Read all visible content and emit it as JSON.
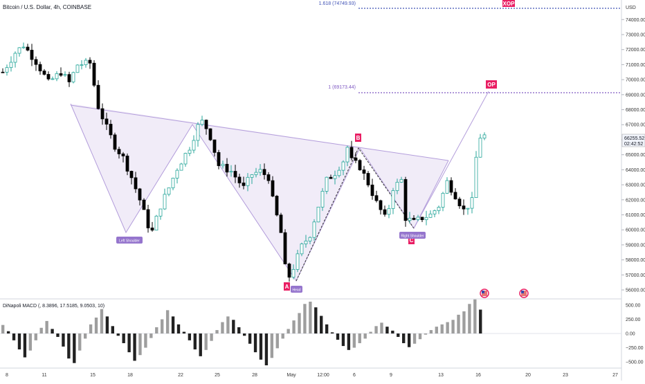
{
  "header": {
    "title": "Bitcoin / U.S. Dollar, 4h, COINBASE",
    "currency": "USD"
  },
  "price_panel": {
    "ticks": [
      "74000.00",
      "73000.00",
      "72000.00",
      "71000.00",
      "70000.00",
      "69000.00",
      "68000.00",
      "67000.00",
      "66000.00",
      "65000.00",
      "64000.00",
      "63000.00",
      "62000.00",
      "61000.00",
      "60000.00",
      "59000.00",
      "58000.00",
      "57000.00",
      "56000.00"
    ],
    "current_price": "66255.52",
    "countdown": "02:42:52",
    "fib_1618_label": "1.618 (74749.93)",
    "fib_1_label": "1 (69173.44)",
    "xop_label": "XOP",
    "op_label": "OP"
  },
  "pattern_labels": {
    "a": "A",
    "b": "B",
    "c": "C",
    "left_shoulder": "Left Shoulder",
    "head": "Head",
    "right_shoulder": "Right Shoulder"
  },
  "macd_panel": {
    "title": "DiNapoli MACD (, 8.3896, 17.5185, 9.0503, 10)",
    "ticks": [
      "500.00",
      "250.00",
      "0.00",
      "−250.00",
      "−500.00"
    ]
  },
  "time_axis": {
    "labels": [
      "8",
      "11",
      "15",
      "18",
      "22",
      "25",
      "28",
      "May",
      "12:00",
      "6",
      "9",
      "13",
      "16",
      "20",
      "23",
      "27"
    ]
  },
  "colors": {
    "up": "#26a69a",
    "down": "#000000",
    "fib": "#3f51b5",
    "pattern_fill": "#ede7f6",
    "label_red": "#e91e63",
    "label_purple": "#9575cd"
  },
  "chart_data": [
    {
      "type": "candlestick",
      "title": "Bitcoin / U.S. Dollar, 4h, COINBASE",
      "ylabel": "USD",
      "ylim": [
        55500,
        75000
      ],
      "x_labels": [
        "8",
        "11",
        "15",
        "18",
        "22",
        "25",
        "28",
        "May",
        "12:00",
        "6",
        "9",
        "13",
        "16",
        "20",
        "23",
        "27"
      ],
      "close_path": [
        [
          0,
          70500
        ],
        [
          3,
          71800
        ],
        [
          5,
          72300
        ],
        [
          8,
          71200
        ],
        [
          11,
          69800
        ],
        [
          14,
          70500
        ],
        [
          16,
          69800
        ],
        [
          18,
          71000
        ],
        [
          21,
          71100
        ],
        [
          23,
          68200
        ],
        [
          25,
          66800
        ],
        [
          27,
          65600
        ],
        [
          29,
          64800
        ],
        [
          31,
          63500
        ],
        [
          33,
          62000
        ],
        [
          35,
          60300
        ],
        [
          36,
          59900
        ],
        [
          38,
          61600
        ],
        [
          40,
          62800
        ],
        [
          42,
          64100
        ],
        [
          45,
          65500
        ],
        [
          47,
          66900
        ],
        [
          48,
          67200
        ],
        [
          49,
          66800
        ],
        [
          50,
          66200
        ],
        [
          52,
          64300
        ],
        [
          55,
          63900
        ],
        [
          58,
          62800
        ],
        [
          60,
          63700
        ],
        [
          62,
          63900
        ],
        [
          64,
          63500
        ],
        [
          65,
          62000
        ],
        [
          67,
          59800
        ],
        [
          68,
          57500
        ],
        [
          69,
          56900
        ],
        [
          70,
          57500
        ],
        [
          72,
          58900
        ],
        [
          74,
          59700
        ],
        [
          76,
          61600
        ],
        [
          78,
          63300
        ],
        [
          80,
          63800
        ],
        [
          82,
          64600
        ],
        [
          83,
          65500
        ],
        [
          84,
          64600
        ],
        [
          86,
          64200
        ],
        [
          88,
          63100
        ],
        [
          90,
          61800
        ],
        [
          92,
          60800
        ],
        [
          93,
          61500
        ],
        [
          94,
          62800
        ],
        [
          96,
          63300
        ],
        [
          97,
          60800
        ],
        [
          99,
          60500
        ],
        [
          101,
          60800
        ],
        [
          103,
          61000
        ],
        [
          105,
          61600
        ],
        [
          107,
          63200
        ],
        [
          109,
          62300
        ],
        [
          111,
          61300
        ],
        [
          113,
          61900
        ],
        [
          114,
          64800
        ],
        [
          115,
          66200
        ],
        [
          116,
          66260
        ]
      ],
      "series": [
        {
          "name": "1.618 (74749.93)",
          "values": [
            74749.93
          ]
        },
        {
          "name": "1 (69173.44)",
          "values": [
            69173.44
          ]
        }
      ],
      "annotations": [
        "A",
        "B",
        "C",
        "XOP",
        "OP",
        "Left Shoulder",
        "Head",
        "Right Shoulder"
      ],
      "last_value": 66255.52
    },
    {
      "type": "bar",
      "title": "DiNapoli MACD (, 8.3896, 17.5185, 9.0503, 10)",
      "ylim": [
        -560,
        560
      ],
      "values": [
        150,
        40,
        -120,
        -280,
        -420,
        -300,
        -120,
        100,
        220,
        80,
        -60,
        -230,
        -440,
        -520,
        -300,
        -90,
        160,
        280,
        430,
        300,
        130,
        -40,
        -170,
        -330,
        -480,
        -380,
        -250,
        -80,
        110,
        250,
        410,
        300,
        160,
        30,
        -120,
        -280,
        -400,
        -290,
        -130,
        60,
        200,
        300,
        240,
        110,
        -40,
        -180,
        -330,
        -460,
        -560,
        -430,
        -260,
        -90,
        80,
        230,
        360,
        520,
        560,
        460,
        310,
        160,
        20,
        -110,
        -220,
        -290,
        -250,
        -170,
        -90,
        30,
        130,
        190,
        120,
        50,
        -60,
        -170,
        -240,
        -180,
        -100,
        -20,
        60,
        120,
        160,
        200,
        240,
        330,
        390,
        520,
        600,
        420
      ]
    }
  ]
}
